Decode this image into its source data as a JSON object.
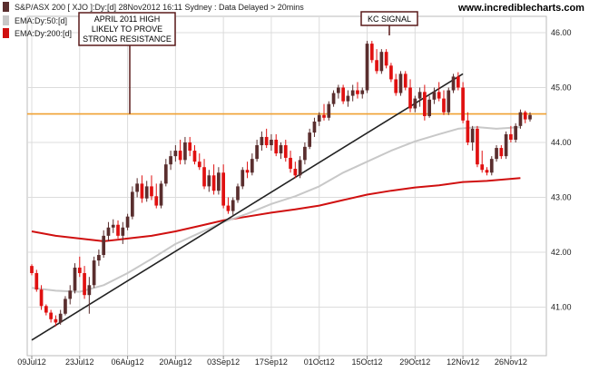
{
  "header": {
    "title": "S&P/ASX 200 [ XJO ]:Dy:[d]  28Nov2012 16:11 Sydney : Data Delayed > 20mins",
    "brand": "www.incrediblecharts.com"
  },
  "colors": {
    "up": "#5a2e2e",
    "down": "#e01010",
    "ema50": "#c8c8c8",
    "ema200": "#d01010",
    "resistance": "#f0a030",
    "trendline": "#222222",
    "grid": "#dcdcdc",
    "annotation_border": "#5a1a1a"
  },
  "chart_data": {
    "type": "candlestick",
    "title": "S&P/ASX 200 [ XJO ]:Dy:[d]  28Nov2012 16:11 Sydney : Data Delayed > 20mins",
    "y_axis_position": "right",
    "ylim": [
      40.4,
      46.5
    ],
    "y_ticks": [
      "46.00",
      "45.00",
      "44.00",
      "43.00",
      "42.00",
      "41.00"
    ],
    "y_tick_values": [
      46,
      45,
      44,
      43,
      42,
      41
    ],
    "x_tick_labels": [
      "09Jul12",
      "23Jul12",
      "06Aug12",
      "20Aug12",
      "03Sep12",
      "17Sep12",
      "01Oct12",
      "15Oct12",
      "29Oct12",
      "12Nov12",
      "26Nov12"
    ],
    "x_tick_index": [
      0,
      10,
      20,
      30,
      40,
      50,
      60,
      70,
      80,
      90,
      100
    ],
    "grid": true,
    "legend": [
      {
        "name": "S&P/ASX 200 [ XJO ]:Dy:[d]",
        "color": "#5a2e2e"
      },
      {
        "name": "EMA:Dy:50:[d]",
        "color": "#c8c8c8"
      },
      {
        "name": "EMA:Dy:200:[d]",
        "color": "#d01010"
      }
    ],
    "legend_position": "top-left",
    "candles": [
      [
        41.75,
        41.78,
        41.58,
        41.62
      ],
      [
        41.62,
        41.68,
        41.28,
        41.32
      ],
      [
        41.32,
        41.4,
        40.95,
        41.02
      ],
      [
        41.02,
        41.05,
        40.85,
        40.9
      ],
      [
        40.9,
        40.95,
        40.72,
        40.78
      ],
      [
        40.78,
        40.85,
        40.65,
        40.72
      ],
      [
        40.72,
        40.95,
        40.68,
        40.88
      ],
      [
        40.88,
        41.2,
        40.85,
        41.15
      ],
      [
        41.15,
        41.4,
        41.05,
        41.3
      ],
      [
        41.3,
        41.8,
        41.25,
        41.72
      ],
      [
        41.72,
        41.92,
        41.55,
        41.62
      ],
      [
        41.62,
        41.75,
        41.15,
        41.22
      ],
      [
        41.22,
        41.55,
        40.88,
        41.4
      ],
      [
        41.4,
        41.92,
        41.35,
        41.85
      ],
      [
        41.85,
        42.05,
        41.75,
        41.95
      ],
      [
        41.95,
        42.4,
        41.9,
        42.3
      ],
      [
        42.3,
        42.55,
        42.2,
        42.45
      ],
      [
        42.45,
        42.6,
        42.35,
        42.5
      ],
      [
        42.5,
        42.58,
        42.25,
        42.3
      ],
      [
        42.3,
        42.55,
        42.15,
        42.45
      ],
      [
        42.45,
        42.7,
        42.4,
        42.65
      ],
      [
        42.65,
        43.2,
        42.6,
        43.1
      ],
      [
        43.1,
        43.35,
        43.0,
        43.25
      ],
      [
        43.25,
        43.4,
        42.9,
        42.98
      ],
      [
        42.98,
        43.3,
        42.92,
        43.2
      ],
      [
        43.2,
        43.4,
        42.95,
        43.02
      ],
      [
        43.02,
        43.25,
        42.8,
        42.85
      ],
      [
        42.85,
        43.3,
        42.8,
        43.25
      ],
      [
        43.25,
        43.7,
        43.2,
        43.6
      ],
      [
        43.6,
        43.85,
        43.5,
        43.75
      ],
      [
        43.75,
        43.95,
        43.65,
        43.85
      ],
      [
        43.85,
        44.05,
        43.6,
        43.68
      ],
      [
        43.68,
        44.1,
        43.6,
        44.0
      ],
      [
        44.0,
        44.1,
        43.75,
        43.85
      ],
      [
        43.85,
        43.95,
        43.6,
        43.65
      ],
      [
        43.65,
        43.8,
        43.5,
        43.55
      ],
      [
        43.55,
        43.7,
        43.15,
        43.2
      ],
      [
        43.2,
        43.5,
        43.1,
        43.4
      ],
      [
        43.4,
        43.6,
        43.05,
        43.12
      ],
      [
        43.12,
        43.55,
        43.05,
        43.45
      ],
      [
        43.45,
        43.6,
        42.8,
        42.85
      ],
      [
        42.85,
        43.0,
        42.7,
        42.75
      ],
      [
        42.75,
        43.0,
        42.68,
        42.95
      ],
      [
        42.95,
        43.25,
        42.9,
        43.2
      ],
      [
        43.2,
        43.55,
        43.15,
        43.5
      ],
      [
        43.5,
        43.65,
        43.35,
        43.45
      ],
      [
        43.45,
        43.8,
        43.4,
        43.7
      ],
      [
        43.7,
        44.05,
        43.65,
        43.95
      ],
      [
        43.95,
        44.2,
        43.85,
        44.1
      ],
      [
        44.1,
        44.25,
        43.9,
        43.95
      ],
      [
        43.95,
        44.15,
        43.85,
        44.05
      ],
      [
        44.05,
        44.15,
        43.75,
        43.8
      ],
      [
        43.8,
        44.0,
        43.7,
        43.95
      ],
      [
        43.95,
        44.05,
        43.65,
        43.72
      ],
      [
        43.72,
        43.85,
        43.45,
        43.52
      ],
      [
        43.52,
        43.65,
        43.35,
        43.4
      ],
      [
        43.4,
        43.75,
        43.35,
        43.68
      ],
      [
        43.68,
        44.0,
        43.6,
        43.92
      ],
      [
        43.92,
        44.25,
        43.88,
        44.18
      ],
      [
        44.18,
        44.45,
        44.1,
        44.38
      ],
      [
        44.38,
        44.55,
        44.3,
        44.5
      ],
      [
        44.5,
        44.7,
        44.4,
        44.45
      ],
      [
        44.45,
        44.75,
        44.4,
        44.7
      ],
      [
        44.7,
        44.95,
        44.65,
        44.9
      ],
      [
        44.9,
        45.05,
        44.8,
        45.0
      ],
      [
        45.0,
        45.05,
        44.7,
        44.75
      ],
      [
        44.75,
        44.95,
        44.65,
        44.85
      ],
      [
        44.85,
        45.05,
        44.75,
        44.95
      ],
      [
        44.95,
        45.1,
        44.8,
        44.88
      ],
      [
        44.88,
        45.0,
        44.8,
        44.95
      ],
      [
        44.95,
        45.85,
        44.9,
        45.8
      ],
      [
        45.8,
        45.85,
        45.45,
        45.5
      ],
      [
        45.5,
        45.7,
        45.25,
        45.3
      ],
      [
        45.3,
        45.7,
        45.25,
        45.65
      ],
      [
        45.65,
        45.7,
        45.35,
        45.4
      ],
      [
        45.4,
        45.45,
        45.1,
        45.15
      ],
      [
        45.15,
        45.25,
        44.85,
        44.9
      ],
      [
        44.9,
        45.3,
        44.85,
        45.25
      ],
      [
        45.25,
        45.3,
        44.95,
        45.0
      ],
      [
        45.0,
        45.15,
        44.55,
        44.62
      ],
      [
        44.62,
        44.85,
        44.55,
        44.8
      ],
      [
        44.8,
        45.0,
        44.65,
        44.92
      ],
      [
        44.92,
        45.05,
        44.4,
        44.48
      ],
      [
        44.48,
        44.85,
        44.45,
        44.78
      ],
      [
        44.78,
        45.0,
        44.7,
        44.92
      ],
      [
        44.92,
        45.1,
        44.75,
        44.8
      ],
      [
        44.8,
        44.95,
        44.5,
        44.55
      ],
      [
        44.55,
        45.0,
        44.5,
        44.95
      ],
      [
        44.95,
        45.25,
        44.9,
        45.2
      ],
      [
        45.2,
        45.28,
        44.95,
        45.0
      ],
      [
        45.0,
        45.1,
        44.35,
        44.4
      ],
      [
        44.4,
        44.55,
        43.95,
        44.0
      ],
      [
        44.0,
        44.3,
        43.85,
        44.25
      ],
      [
        44.25,
        44.3,
        43.55,
        43.6
      ],
      [
        43.6,
        43.85,
        43.45,
        43.5
      ],
      [
        43.5,
        43.55,
        43.4,
        43.45
      ],
      [
        43.45,
        43.75,
        43.4,
        43.7
      ],
      [
        43.7,
        43.95,
        43.65,
        43.9
      ],
      [
        43.9,
        43.95,
        43.7,
        43.75
      ],
      [
        43.75,
        44.2,
        43.7,
        44.15
      ],
      [
        44.15,
        44.3,
        44.0,
        44.05
      ],
      [
        44.05,
        44.35,
        44.0,
        44.3
      ],
      [
        44.3,
        44.6,
        44.25,
        44.55
      ],
      [
        44.55,
        44.58,
        44.35,
        44.42
      ],
      [
        44.42,
        44.55,
        44.38,
        44.5
      ]
    ],
    "ema50": [
      [
        0,
        41.35
      ],
      [
        5,
        41.3
      ],
      [
        10,
        41.28
      ],
      [
        15,
        41.4
      ],
      [
        20,
        41.62
      ],
      [
        25,
        41.88
      ],
      [
        30,
        42.15
      ],
      [
        35,
        42.35
      ],
      [
        40,
        42.55
      ],
      [
        45,
        42.7
      ],
      [
        50,
        42.88
      ],
      [
        55,
        43.02
      ],
      [
        60,
        43.2
      ],
      [
        65,
        43.45
      ],
      [
        70,
        43.65
      ],
      [
        75,
        43.85
      ],
      [
        80,
        44.02
      ],
      [
        85,
        44.15
      ],
      [
        89,
        44.25
      ],
      [
        93,
        44.28
      ],
      [
        97,
        44.25
      ],
      [
        102,
        44.28
      ]
    ],
    "ema200": [
      [
        0,
        42.38
      ],
      [
        5,
        42.3
      ],
      [
        10,
        42.25
      ],
      [
        15,
        42.2
      ],
      [
        20,
        42.25
      ],
      [
        25,
        42.3
      ],
      [
        30,
        42.38
      ],
      [
        35,
        42.48
      ],
      [
        40,
        42.58
      ],
      [
        45,
        42.65
      ],
      [
        50,
        42.72
      ],
      [
        55,
        42.78
      ],
      [
        60,
        42.85
      ],
      [
        65,
        42.95
      ],
      [
        70,
        43.05
      ],
      [
        75,
        43.12
      ],
      [
        80,
        43.18
      ],
      [
        85,
        43.22
      ],
      [
        90,
        43.28
      ],
      [
        95,
        43.3
      ],
      [
        102,
        43.35
      ]
    ],
    "resistance": {
      "value": 44.52,
      "x_start_index": 0,
      "x_end_index": 102
    },
    "trendline": {
      "x0_index": 0,
      "y0": 40.4,
      "x1_index": 90,
      "y1": 45.25
    },
    "annotations": [
      {
        "text_lines": [
          "APRIL 2011 HIGH",
          "LIKELY TO PROVE",
          "STRONG RESISTANCE"
        ],
        "pointer_index": 20,
        "pointer_value": 44.52
      },
      {
        "text_lines": [
          "KC SIGNAL"
        ],
        "pointer_index": 70,
        "pointer_value": 45.95
      }
    ]
  }
}
